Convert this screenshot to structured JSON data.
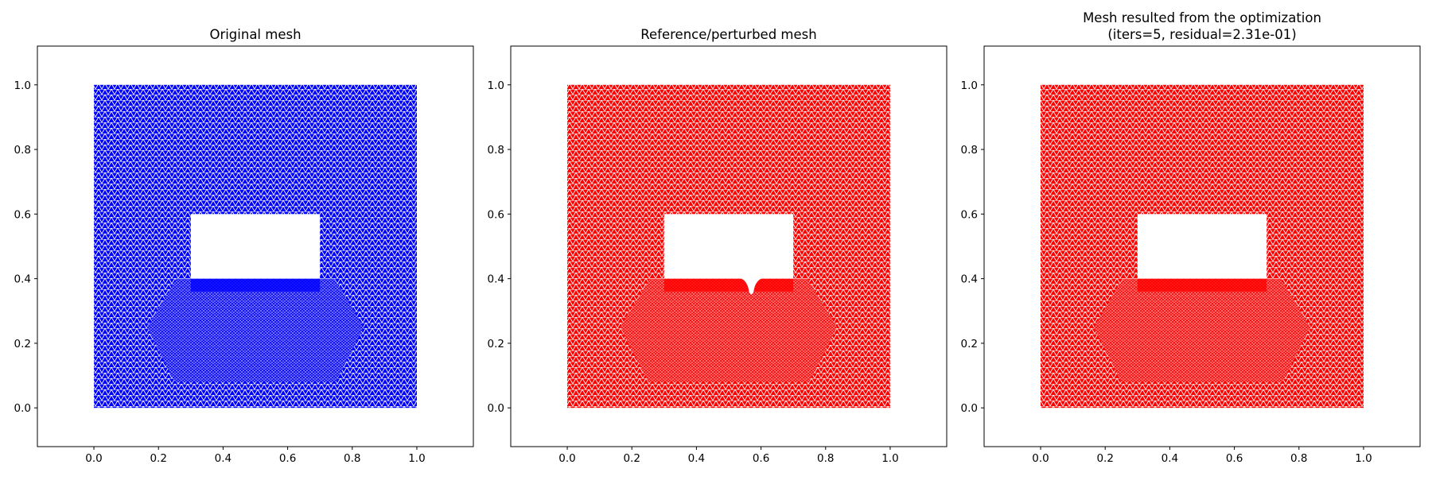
{
  "chart_data": [
    {
      "type": "mesh",
      "title": "Original mesh",
      "title_line2": "",
      "color": "#0000ff",
      "xlim": [
        -0.175,
        1.175
      ],
      "ylim": [
        -0.12,
        1.12
      ],
      "xticks": [
        0.0,
        0.2,
        0.4,
        0.6,
        0.8,
        1.0
      ],
      "yticks": [
        0.0,
        0.2,
        0.4,
        0.6,
        0.8,
        1.0
      ],
      "xtick_labels": [
        "0.0",
        "0.2",
        "0.4",
        "0.6",
        "0.8",
        "1.0"
      ],
      "ytick_labels": [
        "0.0",
        "0.2",
        "0.4",
        "0.6",
        "0.8",
        "1.0"
      ],
      "domain_x": [
        0.0,
        1.0
      ],
      "domain_y": [
        0.0,
        1.0
      ],
      "hole_x": [
        0.3,
        0.7
      ],
      "hole_y": [
        0.4,
        0.6
      ],
      "bump": null,
      "grid": false
    },
    {
      "type": "mesh",
      "title": "Reference/perturbed mesh",
      "title_line2": "",
      "color": "#ff0000",
      "xlim": [
        -0.175,
        1.175
      ],
      "ylim": [
        -0.12,
        1.12
      ],
      "xticks": [
        0.0,
        0.2,
        0.4,
        0.6,
        0.8,
        1.0
      ],
      "yticks": [
        0.0,
        0.2,
        0.4,
        0.6,
        0.8,
        1.0
      ],
      "xtick_labels": [
        "0.0",
        "0.2",
        "0.4",
        "0.6",
        "0.8",
        "1.0"
      ],
      "ytick_labels": [
        "0.0",
        "0.2",
        "0.4",
        "0.6",
        "0.8",
        "1.0"
      ],
      "domain_x": [
        0.0,
        1.0
      ],
      "domain_y": [
        0.0,
        1.0
      ],
      "hole_x": [
        0.3,
        0.7
      ],
      "hole_y": [
        0.4,
        0.6
      ],
      "bump": {
        "x_center": 0.57,
        "half_width": 0.035,
        "depth_y": 0.35
      },
      "grid": false
    },
    {
      "type": "mesh",
      "title": "Mesh resulted from the optimization",
      "title_line2": "(iters=5, residual=2.31e-01)",
      "color": "#ff0000",
      "xlim": [
        -0.175,
        1.175
      ],
      "ylim": [
        -0.12,
        1.12
      ],
      "xticks": [
        0.0,
        0.2,
        0.4,
        0.6,
        0.8,
        1.0
      ],
      "yticks": [
        0.0,
        0.2,
        0.4,
        0.6,
        0.8,
        1.0
      ],
      "xtick_labels": [
        "0.0",
        "0.2",
        "0.4",
        "0.6",
        "0.8",
        "1.0"
      ],
      "ytick_labels": [
        "0.0",
        "0.2",
        "0.4",
        "0.6",
        "0.8",
        "1.0"
      ],
      "domain_x": [
        0.0,
        1.0
      ],
      "domain_y": [
        0.0,
        1.0
      ],
      "hole_x": [
        0.3,
        0.7
      ],
      "hole_y": [
        0.4,
        0.6
      ],
      "bump": null,
      "grid": false
    }
  ]
}
